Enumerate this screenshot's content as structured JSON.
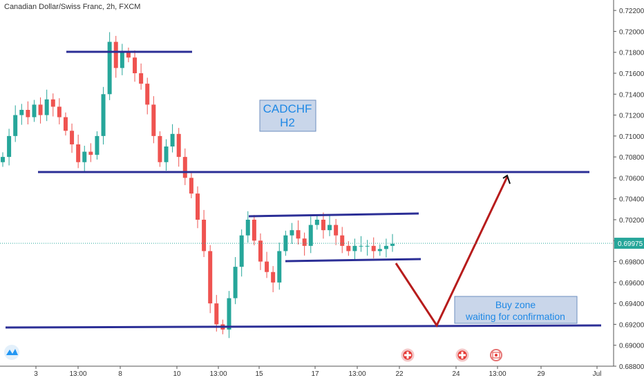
{
  "chart_title": "Canadian Dollar/Swiss Franc, 2h, FXCM",
  "last_price_label": "0.69975",
  "chart_data": {
    "type": "candlestick",
    "ylim": [
      0.688,
      0.723
    ],
    "yticks": [
      "0.72200",
      "0.72000",
      "0.71800",
      "0.71600",
      "0.71400",
      "0.71200",
      "0.71000",
      "0.70800",
      "0.70600",
      "0.70400",
      "0.70200",
      "0.70000",
      "0.69800",
      "0.69600",
      "0.69400",
      "0.69200",
      "0.69000",
      "0.68800"
    ],
    "xticks": [
      "3",
      "13:00",
      "8",
      "10",
      "13:00",
      "15",
      "17",
      "13:00",
      "22",
      "24",
      "13:00",
      "29",
      "Jul"
    ],
    "last_price": 0.69975,
    "grid": false,
    "series": [
      {
        "close": [
          0.708,
          0.71,
          0.712,
          0.7125,
          0.7118,
          0.713,
          0.712,
          0.7135,
          0.7128,
          0.7118,
          0.7105,
          0.7092,
          0.7075,
          0.7085,
          0.7082,
          0.71,
          0.714,
          0.719,
          0.7165,
          0.718,
          0.7175,
          0.716,
          0.715,
          0.713,
          0.71,
          0.7075,
          0.709,
          0.7102,
          0.708,
          0.706,
          0.7045,
          0.702,
          0.699,
          0.694,
          0.692,
          0.6915,
          0.6945,
          0.6975,
          0.7005,
          0.702,
          0.7,
          0.698,
          0.697,
          0.696,
          0.699,
          0.7005,
          0.701,
          0.7002,
          0.6995,
          0.7015,
          0.702,
          0.701,
          0.7015,
          0.7005,
          0.6995,
          0.699,
          0.6995,
          0.6995,
          0.6995,
          0.699,
          0.6992,
          0.6995,
          0.6997
        ]
      }
    ],
    "annotations": [
      {
        "type": "label",
        "text": "CADCHF\nH2"
      },
      {
        "type": "label",
        "text": "Buy zone\nwaiting for confirmation"
      }
    ]
  }
}
